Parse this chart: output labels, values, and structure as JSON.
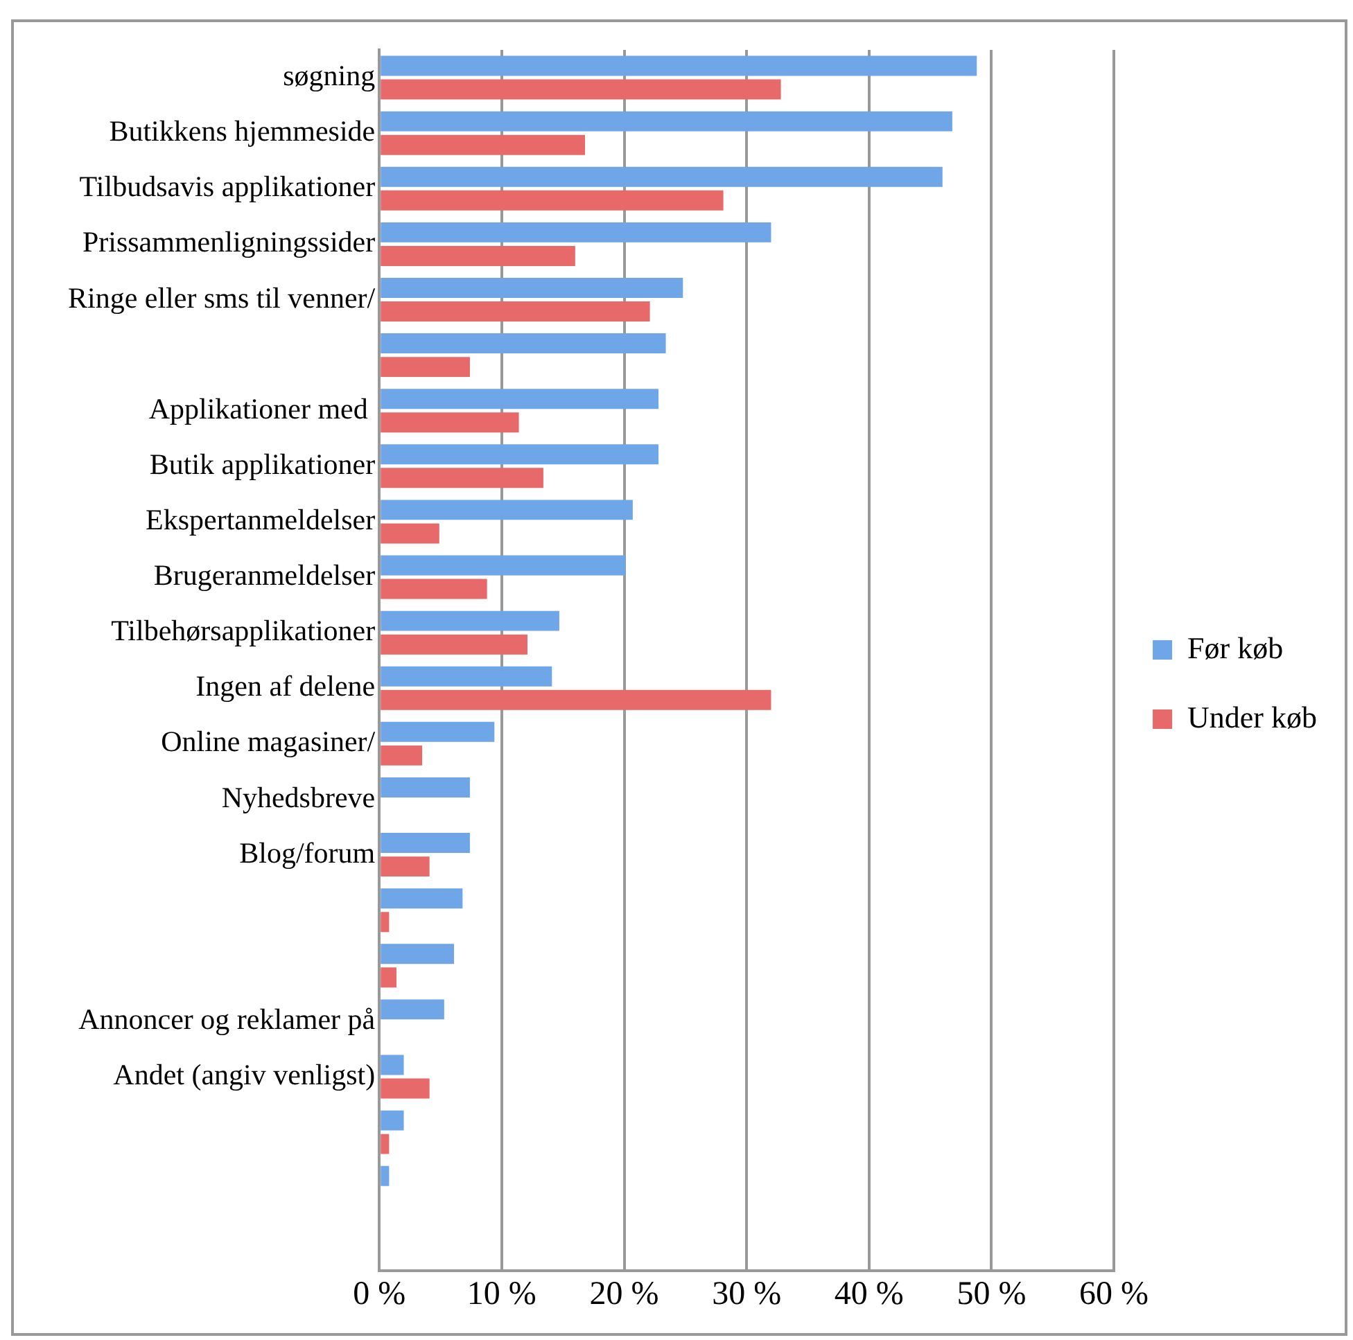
{
  "chart_data": {
    "type": "bar",
    "orientation": "horizontal",
    "categories": [
      "søgning",
      "Butikkens hjemmeside",
      "Tilbudsavis applikationer",
      "Prissammenligningssider",
      "Ringe eller sms til venner/",
      null,
      "Applikationer med ",
      "Butik applikationer",
      "Ekspertanmeldelser",
      "Brugeranmeldelser",
      "Tilbehørsapplikationer",
      "Ingen af delene",
      "Online magasiner/",
      "Nyhedsbreve",
      "Blog/forum",
      null,
      null,
      "Annoncer og reklamer på",
      "Andet (angiv venligst)",
      null,
      null,
      null
    ],
    "series": [
      {
        "name": "Før køb",
        "color": "#6fa6e8",
        "values": [
          48.8,
          46.8,
          46.0,
          32.0,
          24.8,
          23.4,
          22.8,
          22.8,
          20.7,
          20.1,
          14.7,
          14.1,
          9.4,
          7.4,
          7.4,
          6.8,
          6.1,
          5.3,
          2.0,
          2.0,
          0.8,
          0
        ]
      },
      {
        "name": "Under køb",
        "color": "#e8696a",
        "values": [
          32.8,
          16.8,
          28.1,
          16.0,
          22.1,
          7.4,
          11.4,
          13.4,
          4.9,
          8.8,
          12.1,
          32.0,
          3.5,
          0,
          4.1,
          0.8,
          1.4,
          0,
          4.1,
          0.8,
          0,
          0
        ]
      }
    ],
    "xlim": [
      0,
      60
    ],
    "xticks": [
      {
        "value": 0,
        "label": "0 %"
      },
      {
        "value": 10,
        "label": "10 %"
      },
      {
        "value": 20,
        "label": "20 %"
      },
      {
        "value": 30,
        "label": "30 %"
      },
      {
        "value": 40,
        "label": "40 %"
      },
      {
        "value": 50,
        "label": "50 %"
      },
      {
        "value": 60,
        "label": "60 %"
      }
    ],
    "grid": "x",
    "legend": "right"
  }
}
